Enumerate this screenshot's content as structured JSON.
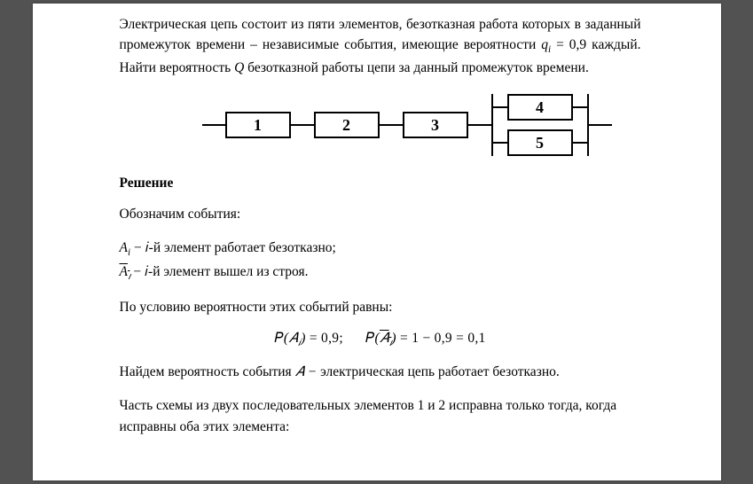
{
  "problem": {
    "line1": "Электрическая цепь состоит из пяти элементов, безотказная работа которых  в",
    "line2": "заданный промежуток времени – независимые события, имеющие вероятности",
    "q_label": "q",
    "q_sub": "i",
    "q_eq": " = 0,9",
    "line3a": " каждый. Найти вероятность ",
    "Q": "Q",
    "line3b": "  безотказной работы цепи  за данный",
    "line4": "промежуток времени."
  },
  "diagram": {
    "box1": "1",
    "box2": "2",
    "box3": "3",
    "box4": "4",
    "box5": "5"
  },
  "solution": {
    "heading": "Решение",
    "events_intro": "Обозначим события:",
    "ev1_a": "A",
    "ev1_sub": "i",
    "ev1_txt": " −  𝑖-й элемент работает безотказно;",
    "ev2_a": "A",
    "ev2_sub": "𝚤",
    "ev2_txt": " −  𝑖-й элемент вышел из строя.",
    "probs_intro": "По условию вероятности этих событий равны:",
    "formula": "𝑃(𝐴ᵢ) = 0,9;      𝑃(𝐴̅ᵢ) = 1 − 0,9 = 0,1",
    "find_intro_a": "Найдем вероятность события ",
    "find_A": "𝐴 −",
    "find_intro_b": "  электрическая цепь работает безотказно.",
    "part_a": "Часть схемы из двух последовательных элементов 1 и 2 исправна только тогда,",
    "part_b": "когда исправны оба этих элемента:"
  },
  "colors": {
    "page_bg": "#ffffff",
    "outer_bg": "#525252",
    "text": "#000000",
    "line": "#000000"
  }
}
